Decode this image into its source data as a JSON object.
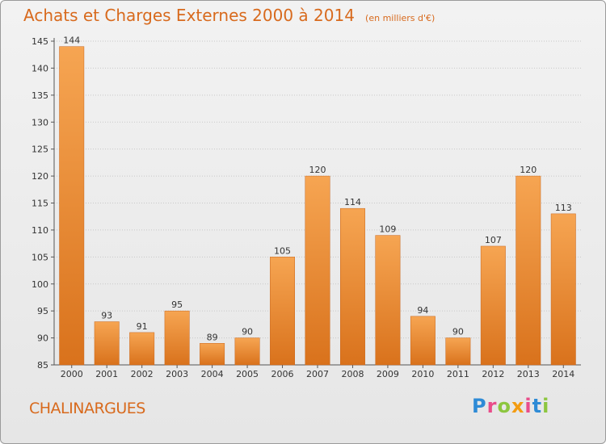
{
  "title": "Achats et Charges Externes 2000 à 2014",
  "subtitle": "(en milliers d'€)",
  "commune": "CHALINARGUES",
  "logo": {
    "letters": [
      "P",
      "r",
      "o",
      "x",
      "i",
      "t",
      "i"
    ],
    "colors": [
      "#2e8bd6",
      "#e94d8a",
      "#8cc63f",
      "#f39c12",
      "#e94d8a",
      "#2e8bd6",
      "#8cc63f"
    ]
  },
  "colors": {
    "bar_light": "#f6a552",
    "bar_dark": "#d9721c",
    "accent": "#d86a1d",
    "grid": "#c8c8c8"
  },
  "chart_data": {
    "type": "bar",
    "categories": [
      "2000",
      "2001",
      "2002",
      "2003",
      "2004",
      "2005",
      "2006",
      "2007",
      "2008",
      "2009",
      "2010",
      "2011",
      "2012",
      "2013",
      "2014"
    ],
    "values": [
      144,
      93,
      91,
      95,
      89,
      90,
      105,
      120,
      114,
      109,
      94,
      90,
      107,
      120,
      113
    ],
    "ylim": [
      85,
      145
    ],
    "yticks": [
      85,
      90,
      95,
      100,
      105,
      110,
      115,
      120,
      125,
      130,
      135,
      140,
      145
    ],
    "grid": true,
    "data_labels": true
  }
}
